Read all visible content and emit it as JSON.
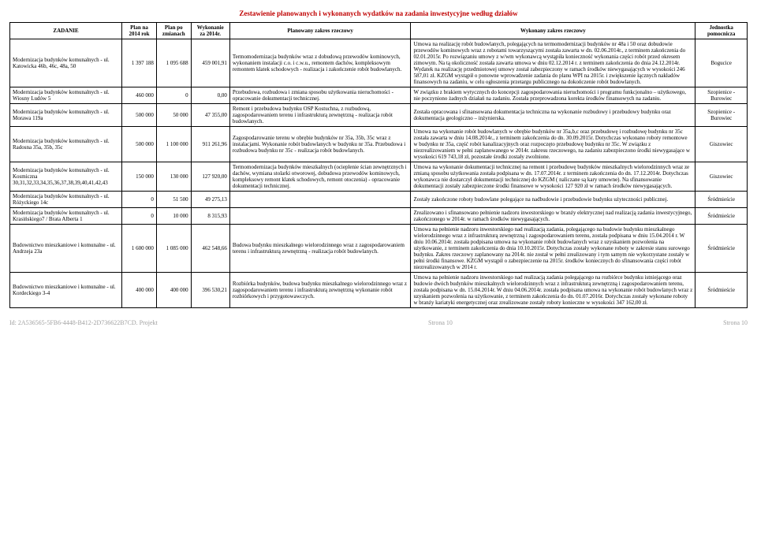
{
  "title": "Zestawienie planowanych i wykonanych wydatków na zadania inwestycyjne według działów",
  "columns": {
    "zadanie": "ZADANIE",
    "plan_na": "Plan na 2014 rok",
    "plan_po": "Plan po zmianach",
    "wykonanie": "Wykonanie za 2014r.",
    "planowany": "Planowany zakres rzeczowy",
    "wykonany": "Wykonany zakres rzeczowy",
    "jednostka": "Jednostka pomocnicza"
  },
  "rows": [
    {
      "zadanie": "Modernizacja budynków komunalnych - ul. Katowicka 46b, 46c, 48a, 50",
      "plan_na": "1 397 188",
      "plan_po": "1 095 688",
      "wykonanie": "459 001,91",
      "planowany": "Termomodernizacja budynków wraz z dobudową przewodów kominowych, wykonaniem instalacji c.o. i c.w.u., remontem dachów, kompleksowym remontem klatek schodowych - realizacja i zakończenie robót budowlanych.",
      "wykonany": "Umowa na realizację robót budowlanych, polegających na termomodernizacji budynków nr 48a i 50 oraz dobudowie przewodów kominowych wraz z robotami towarzyszącymi została zawarta w dn. 02.06.2014r., z terminem zakończenia do 02.01.2015r. Po rozwiązaniu umowy z w/wm wykonawcą wystąpiła konieczność wykonania części robót przed okresem zimowym. Na tą okoliczność została zawarta umowa w dniu 02.12.2014 r. z terminem zakończenia do dnia 24.12.2014r. Wydatek na realizację przedmiotowej umowy został zabezpieczony w ramach środków niewygasających w wysokości 246 587,01 zł. KZGM wystąpił o ponowne wprowadzenie zadania do planu WPI na 2015r. i zwiększenie łącznych nakładów finansowych na zadaniu, w celu ogłoszenia przetargu publicznego na dokończenie robót budowlanych.",
      "jednostka": "Bogucice"
    },
    {
      "zadanie": "Modernizacja budynków komunalnych - ul. Wiosny Ludów 5",
      "plan_na": "460 000",
      "plan_po": "0",
      "wykonanie": "0,00",
      "planowany": "Przebudowa, rozbudowa i zmiana sposobu użytkowania nieruchomości - opracowanie dokumentacji technicznej.",
      "wykonany": "W związku z brakiem wytycznych do koncepcji zagospodarowania nieruchomości i programu funkcjonalno – użytkowego, nie poczyniono żadnych działań na zadaniu. Została przeprowadzona korekta środków finansowych na zadaniu.",
      "jednostka": "Szopienice - Burowiec"
    },
    {
      "zadanie": "Modernizacja budynków komunalnych - ul. Morawa 119a",
      "plan_na": "500 000",
      "plan_po": "50 000",
      "wykonanie": "47 355,00",
      "planowany": "Remont i przebudowa budynku OSP Kostuchna, z rozbudową, zagospodarowaniem terenu i infrastrukturą zewnętrzną - realizacja robót budowlanych.",
      "wykonany": "Została opracowana i sfinansowana dokumentacja techniczna na wykonanie rozbudowy i przebudowy budynku oraz dokumentacja geologiczno – inżynierska.",
      "jednostka": "Szopienice - Burowiec"
    },
    {
      "zadanie": "Modernizacja budynków komunalnych - ul. Radosna 35a, 35b, 35c",
      "plan_na": "500 000",
      "plan_po": "1 100 000",
      "wykonanie": "911 261,96",
      "planowany": "Zagospodarowanie terenu w obrębie budynków nr 35a, 35b, 35c wraz z instalacjami. Wykonanie robót budowlanych w budynku nr 35a. Przebudowa i rozbudowa budynku nr 35c - realizacja robót budowlanych.",
      "wykonany": "Umowa na wykonanie robót budowlanych w obrębie budynków nr 35a,b,c oraz przebudowę i rozbudowę budynku nr 35c została zawarta w dniu 14.08.2014r., z terminem zakończenia do dn. 30.09.2015r. Dotychczas wykonano roboty remontowe w budynku nr 35a, część robót kanalizacyjnych oraz rozpoczęto przebudowę budynku nr 35c. W związku z niezrealizowaniem w pełni zaplanowanego w 2014r. zakresu rzeczowego, na zadaniu zabezpieczono środki niewygasające w wysokości 619 743,18 zł, pozostałe środki zostały zwolnione.",
      "jednostka": "Giszowiec"
    },
    {
      "zadanie": "Modernizacja budynków komunalnych - ul. Kosmiczna 30,31,32,33,34,35,36,37,38,39,40,41,42,43",
      "plan_na": "150 000",
      "plan_po": "130 000",
      "wykonanie": "127 920,00",
      "planowany": "Termomodernizacja budynków mieszkalnych (ocieplenie ścian zewnętrznych i dachów, wymiana stolarki otworowej, dobudowa przewodów kominowych, kompleksowy remont klatek schodowych, remont otoczenia) - opracowanie dokumentacji technicznej.",
      "wykonany": "Umowa na wykonanie dokumentacji technicznej na remont i przebudowę budynków mieszkalnych wielorodzinnych wraz ze zmianą sposobu użytkowania została podpisana w dn. 17.07.2014r. z terminem zakończenia do dn. 17.12.2014r. Dotychczas wykonawca nie dostarczył dokumentacji technicznej do KZGM ( naliczane są kary umowne). Na sfinansowanie dokumentacji zostały zabezpieczone środki finansowe w wysokości 127 920 zł w ramach środków niewygasających.",
      "jednostka": "Giszowiec"
    },
    {
      "zadanie": "Modernizacja budynków komunalnych - ul. Różyckiego 14c",
      "plan_na": "0",
      "plan_po": "51 500",
      "wykonanie": "49 275,13",
      "planowany": "",
      "wykonany": "Zostały zakończone roboty budowlane polegające na nadbudowie i przebudowie budynku użyteczności publicznej.",
      "jednostka": "Śródmieście"
    },
    {
      "zadanie": "Modernizacja budynków komunalnych - ul. Krasińskiego7 / Brata Alberta 1",
      "plan_na": "0",
      "plan_po": "10 000",
      "wykonanie": "8 315,93",
      "planowany": "",
      "wykonany": "Zrealizowano i sfinansowano pełnienie nadzoru inwestorskiego w branży elektrycznej nad realizacją zadania inwestycyjnego, zakończonego w 2014r. w ramach środków niewygasających.",
      "jednostka": "Śródmieście"
    },
    {
      "zadanie": "Budownictwo mieszkaniowe i komunalne - ul. Andrzeja 23a",
      "plan_na": "1 600 000",
      "plan_po": "1 085 000",
      "wykonanie": "462 548,66",
      "planowany": "Budowa budynku mieszkalnego wielorodzinnego wraz z zagospodarowaniem terenu i infrastrukturą zewnętrzną - realizacja robót budowlanych.",
      "wykonany": "Umowa na pełnienie nadzoru inwestorskiego nad realizacją zadania, polegającego na budowie budynku mieszkalnego wielorodzinnego wraz z infrastrukturą zewnętrzną i zagospodarowaniem terenu, została podpisana w dniu 15.04.2014 r. W dniu 10.06.2014r. została podpisana umowa na wykonanie robót budowlanych wraz z uzyskaniem pozwolenia na użytkowanie, z terminem zakończenia do dnia 10.10.2015r. Dotychczas zostały wykonane roboty w zakresie stanu surowego budynku. Zakres rzeczowy zaplanowany na 2014r. nie został w pełni zrealizowany i tym samym nie wykorzystane zostały w pełni środki finansowe. KZGM wystąpił o zabezpieczenie na 2015r. środków koniecznych do sfinansowania części robót niezrealizowanych w 2014 r.",
      "jednostka": "Śródmieście"
    },
    {
      "zadanie": "Budownictwo mieszkaniowe i komunalne - ul. Kordeckiego 3-4",
      "plan_na": "400 000",
      "plan_po": "400 000",
      "wykonanie": "396 530,21",
      "planowany": "Rozbiórka budynków, budowa budynku mieszkalnego wielorodzinnego wraz z zagospodarowaniem terenu i infrastrukturą zewnętrzną wykonanie robót rozbiórkowych i przygotowawczych.",
      "wykonany": "Umowa na pełnienie nadzoru inwestorskiego nad realizacją zadania polegającego na rozbiórce budynku istniejącego oraz budowie dwóch budynków mieszkalnych wielorodzinnych wraz z infrastrukturą zewnętrzną i zagospodarowaniem terenu, została podpisana w dn. 15.04.2014r. W dniu 04.06.2014r. została podpisana umowa na wykonanie robót budowlanych wraz z uzyskaniem pozwolenia na użytkowanie, z terminem zakończenia do dn. 01.07.2016r. Dotychczas zostały wykonane roboty w branży kariatyki energetycznej oraz zrealizowane zostały roboty konieczne w wysokości 347 162,00 zł.",
      "jednostka": "Śródmieście"
    }
  ],
  "footer": {
    "id": "Id: 2A536565-5FB6-4448-B412-2D736622B7CD. Projekt",
    "page": "Strona 10"
  }
}
